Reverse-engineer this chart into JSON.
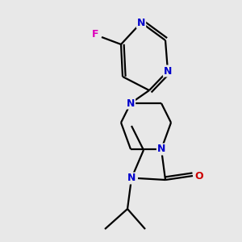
{
  "bg_color": "#e8e8e8",
  "atom_colors": {
    "N_blue": "#0000cc",
    "O_red": "#cc0000",
    "F_pink": "#dd00bb"
  },
  "bond_color": "#000000",
  "bond_width": 1.6,
  "dbo": 0.012,
  "figsize": [
    3.0,
    3.0
  ],
  "dpi": 100,
  "xlim": [
    0,
    300
  ],
  "ylim": [
    0,
    300
  ]
}
